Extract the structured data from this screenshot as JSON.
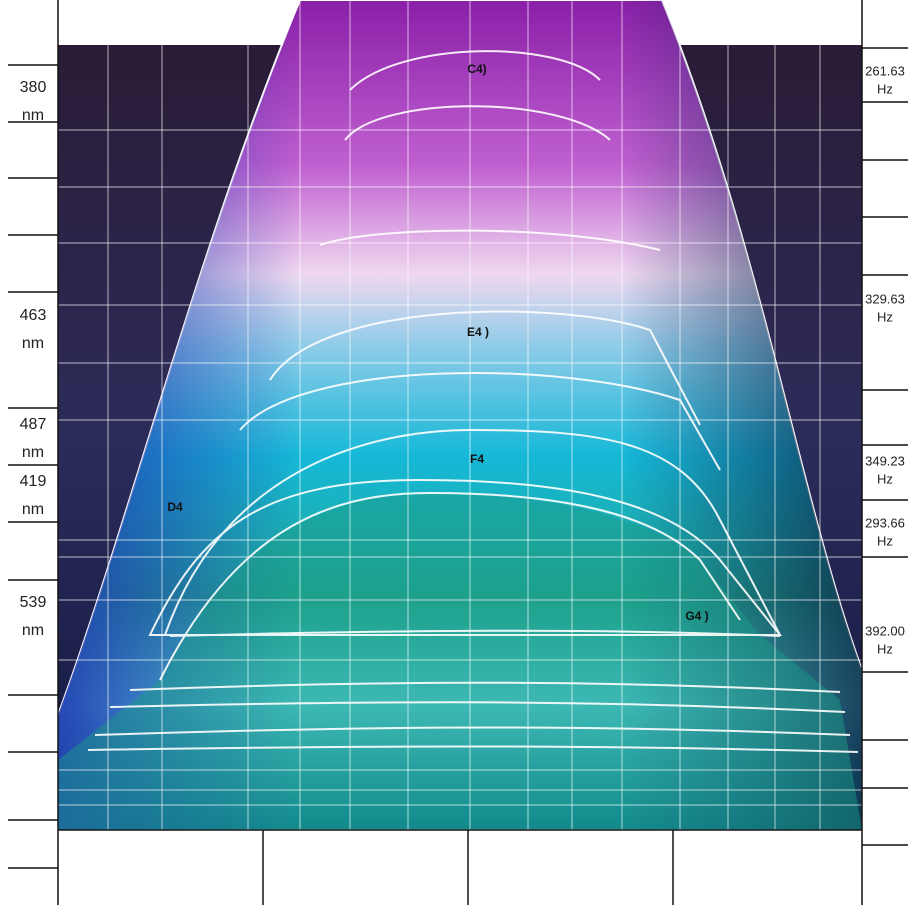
{
  "left_labels": [
    {
      "value": "380",
      "unit": "nm"
    },
    {
      "value": "463",
      "unit": "nm"
    },
    {
      "value": "487",
      "unit": "nm"
    },
    {
      "value": "419",
      "unit": "nm"
    },
    {
      "value": "539",
      "unit": "nm"
    }
  ],
  "right_labels": [
    {
      "value": "261.63",
      "unit": "Hz"
    },
    {
      "value": "329.63",
      "unit": "Hz"
    },
    {
      "value": "349.23",
      "unit": "Hz"
    },
    {
      "value": "293.66",
      "unit": "Hz"
    },
    {
      "value": "392.00",
      "unit": "Hz"
    }
  ],
  "notes": [
    "C4)",
    "E4 )",
    "F4",
    "D4",
    "G4 )"
  ]
}
